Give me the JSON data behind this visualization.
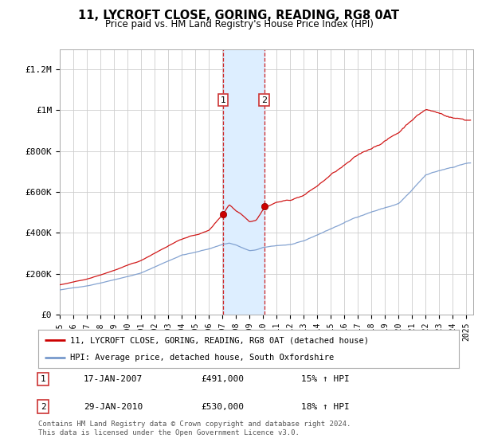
{
  "title": "11, LYCROFT CLOSE, GORING, READING, RG8 0AT",
  "subtitle": "Price paid vs. HM Land Registry's House Price Index (HPI)",
  "ylabel_ticks": [
    "£0",
    "£200K",
    "£400K",
    "£600K",
    "£800K",
    "£1M",
    "£1.2M"
  ],
  "ytick_values": [
    0,
    200000,
    400000,
    600000,
    800000,
    1000000,
    1200000
  ],
  "ylim": [
    0,
    1300000
  ],
  "xlim_start": 1995.0,
  "xlim_end": 2025.5,
  "legend_line1": "11, LYCROFT CLOSE, GORING, READING, RG8 0AT (detached house)",
  "legend_line2": "HPI: Average price, detached house, South Oxfordshire",
  "transaction1_date": "17-JAN-2007",
  "transaction1_price": "£491,000",
  "transaction1_hpi": "15% ↑ HPI",
  "transaction2_date": "29-JAN-2010",
  "transaction2_price": "£530,000",
  "transaction2_hpi": "18% ↑ HPI",
  "footer": "Contains HM Land Registry data © Crown copyright and database right 2024.\nThis data is licensed under the Open Government Licence v3.0.",
  "line1_color": "#cc0000",
  "line2_color": "#7799cc",
  "shade_color": "#ddeeff",
  "marker1_x": 2007.04,
  "marker1_y": 491000,
  "marker2_x": 2010.08,
  "marker2_y": 530000,
  "shade_x1": 2007.04,
  "shade_x2": 2010.08
}
